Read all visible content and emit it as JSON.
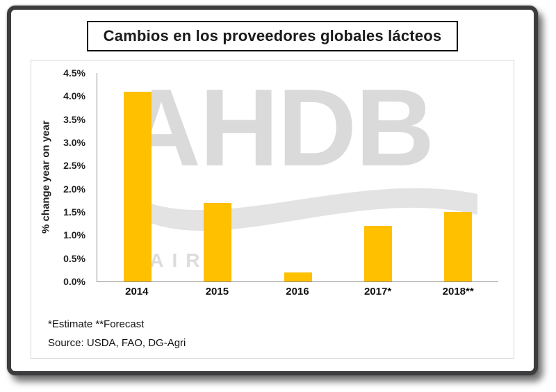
{
  "title_box": {
    "title": "Cambios en los proveedores globales lácteos"
  },
  "watermark": {
    "text": "AHDB",
    "subtext": "DAIRY"
  },
  "chart_data": {
    "type": "bar",
    "title": "Cambios en los proveedores globales lácteos",
    "categories": [
      "2014",
      "2015",
      "2016",
      "2017*",
      "2018**"
    ],
    "values": [
      4.1,
      1.7,
      0.2,
      1.2,
      1.5
    ],
    "xlabel": "",
    "ylabel": "% change year on year",
    "ylim": [
      0,
      4.5
    ],
    "ytick_step": 0.5,
    "yticks": [
      "4.5%",
      "4.0%",
      "3.5%",
      "3.0%",
      "2.5%",
      "2.0%",
      "1.5%",
      "1.0%",
      "0.5%",
      "0.0%"
    ],
    "bar_color": "#FFC000",
    "grid": false,
    "legend": "none"
  },
  "footnotes": {
    "estimate_forecast": "*Estimate **Forecast",
    "source": "Source: USDA, FAO, DG-Agri"
  },
  "colors": {
    "bar": "#FFC000",
    "watermark": "#dadada",
    "frame_border": "#3c3c3e",
    "axis": "#8c8c8c"
  }
}
